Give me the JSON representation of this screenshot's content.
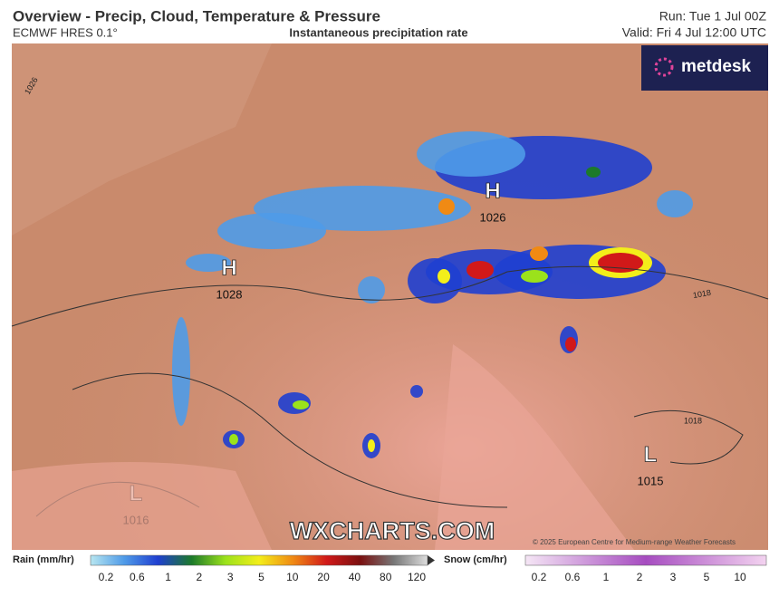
{
  "header": {
    "title": "Overview - Precip, Cloud, Temperature & Pressure",
    "model": "ECMWF HRES 0.1°",
    "subtitle": "Instantaneous precipitation rate",
    "run": "Run: Tue 1 Jul 00Z",
    "valid": "Valid: Fri 4 Jul 12:00 UTC",
    "brand": "metdesk"
  },
  "map": {
    "pressure_centers": [
      {
        "letter": "H",
        "value": 1026
      },
      {
        "letter": "H",
        "value": 1028
      },
      {
        "letter": "L",
        "value": 1015
      },
      {
        "letter": "L",
        "value": 1016
      }
    ],
    "isobar_labels": [
      1026,
      1018,
      1018
    ],
    "watermark": "WXCHARTS.COM",
    "copyright": "© 2025 European Centre for Medium-range Weather Forecasts"
  },
  "legend": {
    "rain": {
      "label": "Rain (mm/hr)",
      "ticks": [
        0.2,
        0.6,
        1,
        2,
        3,
        5,
        10,
        20,
        40,
        80,
        120
      ]
    },
    "snow": {
      "label": "Snow (cm/hr)",
      "ticks": [
        0.2,
        0.6,
        1,
        2,
        3,
        5,
        10
      ]
    }
  }
}
